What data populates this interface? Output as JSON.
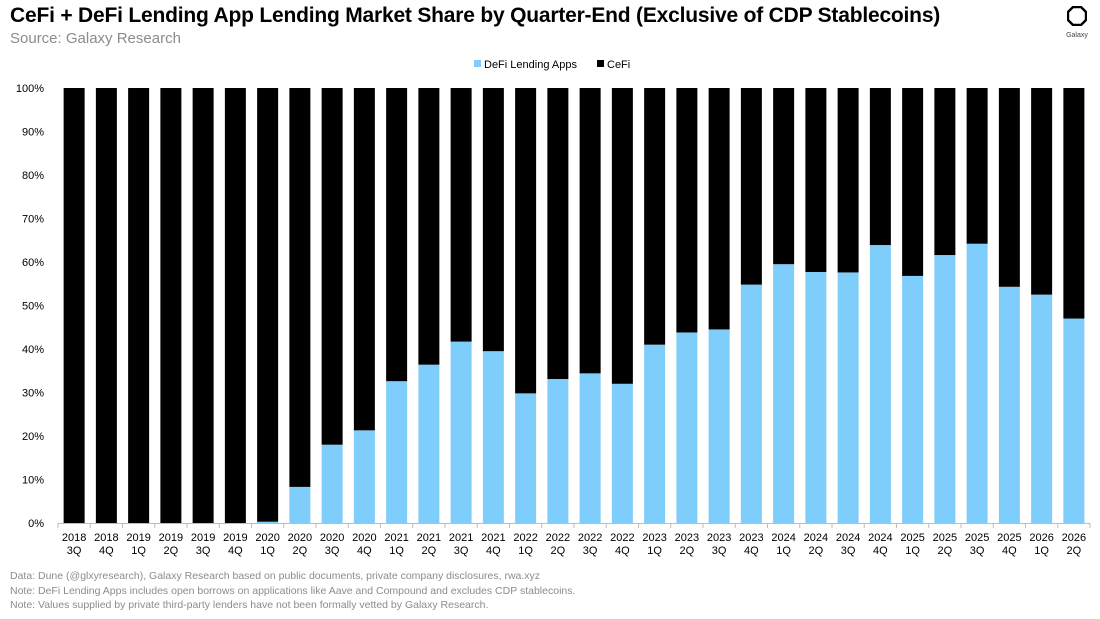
{
  "header": {
    "title": "CeFi + DeFi Lending App Lending Market Share by Quarter-End (Exclusive of CDP Stablecoins)",
    "subtitle": "Source: Galaxy Research"
  },
  "logo": {
    "text": "Galaxy",
    "icon": "galaxy-logo-icon"
  },
  "footer": {
    "notes": [
      "Data: Dune (@glxyresearch), Galaxy Research based on public documents, private company disclosures, rwa.xyz",
      "Note: DeFi Lending Apps includes open borrows on applications like Aave and Compound and excludes CDP stablecoins.",
      "Note: Values supplied by private third-party lenders have not been formally vetted  by Galaxy Research."
    ]
  },
  "chart_data": {
    "type": "bar",
    "stacked": true,
    "categories": [
      [
        "2018",
        "3Q"
      ],
      [
        "2018",
        "4Q"
      ],
      [
        "2019",
        "1Q"
      ],
      [
        "2019",
        "2Q"
      ],
      [
        "2019",
        "3Q"
      ],
      [
        "2019",
        "4Q"
      ],
      [
        "2020",
        "1Q"
      ],
      [
        "2020",
        "2Q"
      ],
      [
        "2020",
        "3Q"
      ],
      [
        "2020",
        "4Q"
      ],
      [
        "2021",
        "1Q"
      ],
      [
        "2021",
        "2Q"
      ],
      [
        "2021",
        "3Q"
      ],
      [
        "2021",
        "4Q"
      ],
      [
        "2022",
        "1Q"
      ],
      [
        "2022",
        "2Q"
      ],
      [
        "2022",
        "3Q"
      ],
      [
        "2022",
        "4Q"
      ],
      [
        "2023",
        "1Q"
      ],
      [
        "2023",
        "2Q"
      ],
      [
        "2023",
        "3Q"
      ],
      [
        "2023",
        "4Q"
      ],
      [
        "2024",
        "1Q"
      ],
      [
        "2024",
        "2Q"
      ],
      [
        "2024",
        "3Q"
      ],
      [
        "2024",
        "4Q"
      ],
      [
        "2025",
        "1Q"
      ],
      [
        "2025",
        "2Q"
      ],
      [
        "2025",
        "3Q"
      ],
      [
        "2025",
        "4Q"
      ],
      [
        "2026",
        "1Q"
      ],
      [
        "2026",
        "2Q"
      ]
    ],
    "series": [
      {
        "name": "DeFi Lending Apps",
        "color": "#7fcdfb",
        "values": [
          0,
          0,
          0,
          0,
          0,
          0,
          0.3,
          8.3,
          18.0,
          21.3,
          32.6,
          36.4,
          41.7,
          39.5,
          29.8,
          33.1,
          34.4,
          32.0,
          41.0,
          43.8,
          44.5,
          54.8,
          59.5,
          57.7,
          57.6,
          63.9,
          56.8,
          61.6,
          64.2,
          54.3,
          52.5,
          47.0
        ]
      },
      {
        "name": "CeFi",
        "color": "#000000",
        "values": [
          100,
          100,
          100,
          100,
          100,
          100,
          99.7,
          91.7,
          82.0,
          78.7,
          67.4,
          63.6,
          58.3,
          60.5,
          70.2,
          66.9,
          65.6,
          68.0,
          59.0,
          56.2,
          55.5,
          45.2,
          40.5,
          42.3,
          42.4,
          36.1,
          43.2,
          38.4,
          35.8,
          45.7,
          47.5,
          53.0
        ]
      }
    ],
    "y_ticks": [
      "0%",
      "10%",
      "20%",
      "30%",
      "40%",
      "50%",
      "60%",
      "70%",
      "80%",
      "90%",
      "100%"
    ],
    "ylim": [
      0,
      100
    ],
    "legend_position": "top-center",
    "grid": false
  }
}
